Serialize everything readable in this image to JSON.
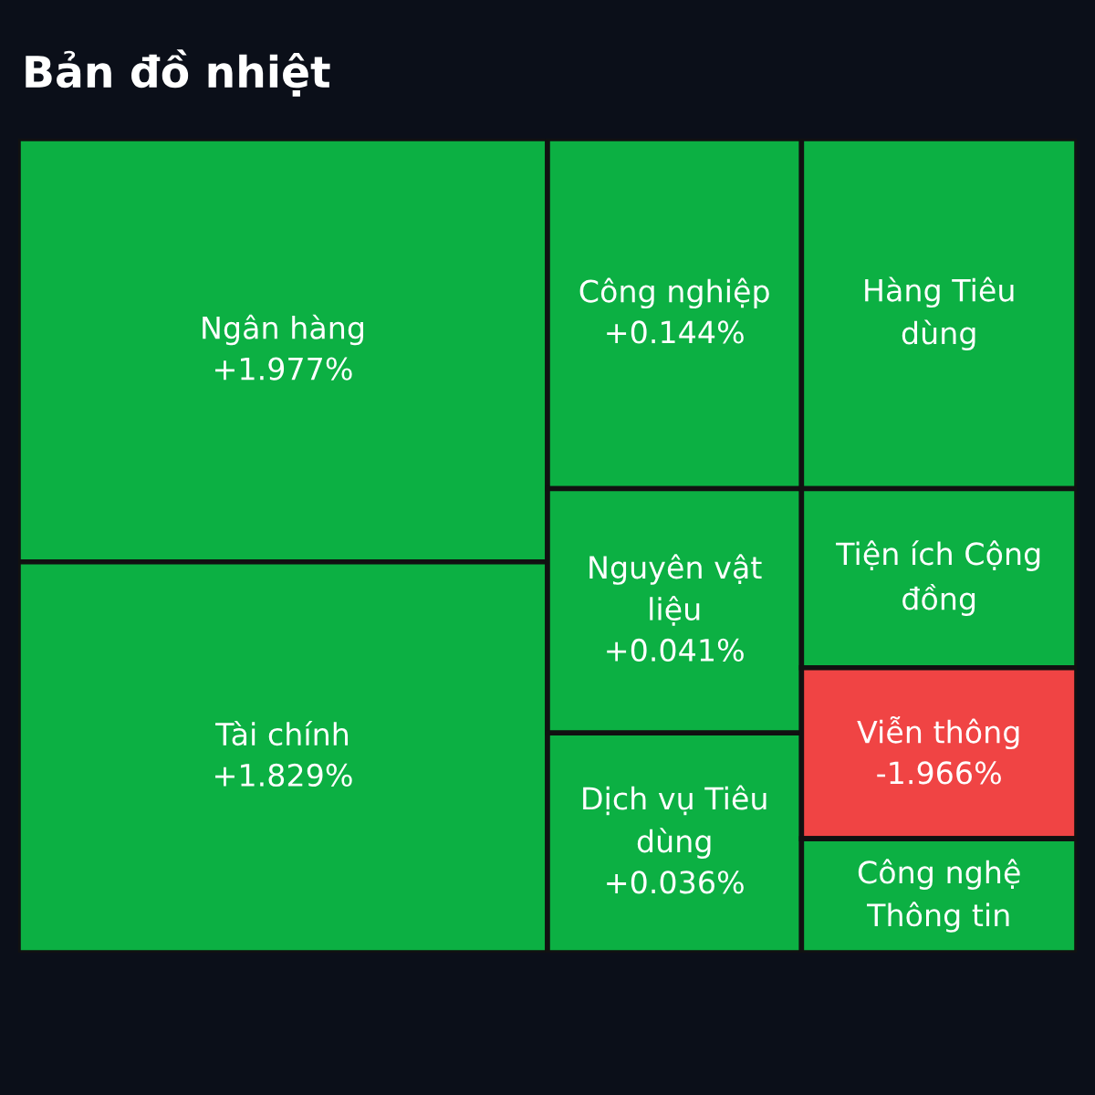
{
  "chart_data": {
    "type": "other",
    "title": "Bản đồ nhiệt",
    "categories": [
      "Ngân hàng",
      "Tài chính",
      "Công nghiệp",
      "Nguyên vật liệu",
      "Dịch vụ Tiêu dùng",
      "Hàng Tiêu dùng",
      "Tiện ích Cộng đồng",
      "Viễn thông",
      "Công nghệ Thông tin"
    ],
    "values": [
      1.977,
      1.829,
      0.144,
      0.041,
      0.036,
      null,
      null,
      -1.966,
      null
    ],
    "value_labels": [
      "+1.977%",
      "+1.829%",
      "+0.144%",
      "+0.041%",
      "+0.036%",
      null,
      null,
      "-1.966%",
      null
    ],
    "colors": [
      "#0cb043",
      "#0cb043",
      "#0cb043",
      "#0cb043",
      "#0cb043",
      "#0cb043",
      "#0cb043",
      "#f04444",
      "#0cb043"
    ]
  }
}
